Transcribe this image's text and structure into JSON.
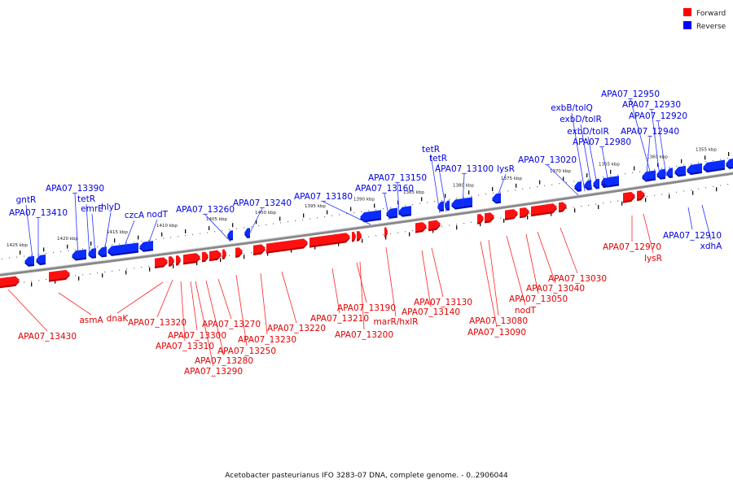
{
  "caption": "Acetobacter pasteurianus IFO 3283-07 DNA, complete genome. - 0..2906044",
  "legend": {
    "forward": "Forward",
    "reverse": "Reverse",
    "forward_color": "#ff0000",
    "reverse_color": "#0000ff"
  },
  "ticks": [
    "1425 kbp",
    "1420 kbp",
    "1415 kbp",
    "1410 kbp",
    "1405 kbp",
    "1400 kbp",
    "1395 kbp",
    "1390 kbp",
    "1385 kbp",
    "1380 kbp",
    "1375 kbp",
    "1370 kbp",
    "1365 kbp",
    "1360 kbp",
    "1355 kbp"
  ],
  "reverse_genes": [
    "gntR",
    "APA07_13410",
    "APA07_13390",
    "tetR",
    "emrE",
    "hlyD",
    "czcA",
    "nodT",
    "APA07_13260",
    "APA07_13240",
    "APA07_13180",
    "APA07_13150",
    "APA07_13160",
    "tetR",
    "tetR",
    "APA07_13100",
    "lysR",
    "APA07_13020",
    "exbB/tolQ",
    "exbD/tolR",
    "exbD/tolR",
    "APA07_12980",
    "APA07_12950",
    "APA07_12930",
    "APA07_12920",
    "APA07_12940",
    "APA07_12910",
    "xdhA"
  ],
  "forward_genes": [
    "APA07_13430",
    "asmA",
    "dnaK",
    "APA07_13320",
    "APA07_13300",
    "APA07_13310",
    "APA07_13270",
    "APA07_13250",
    "APA07_13280",
    "APA07_13290",
    "APA07_13230",
    "APA07_13220",
    "APA07_13210",
    "APA07_13190",
    "APA07_13200",
    "marR/hxlR",
    "APA07_13130",
    "APA07_13140",
    "APA07_13080",
    "APA07_13090",
    "nodT",
    "APA07_13050",
    "APA07_13040",
    "APA07_13030",
    "APA07_12970",
    "lysR"
  ]
}
